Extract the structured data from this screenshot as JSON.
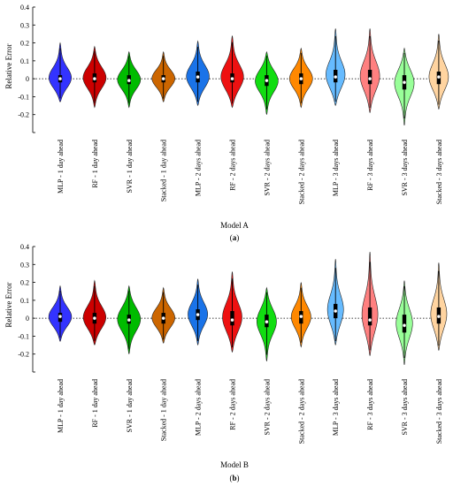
{
  "chart_data": [
    {
      "type": "violin",
      "panel_label": "(a)",
      "panel_letter": "a",
      "xlabel": "Model A",
      "ylabel": "Relative Error",
      "ylim": [
        -0.3,
        0.4
      ],
      "yticks": [
        -0.3,
        -0.2,
        -0.1,
        0,
        0.1,
        0.2,
        0.3,
        0.4
      ],
      "yticklabels": [
        "",
        "-0.2",
        "-0.1",
        "0",
        "0.1",
        "0.2",
        "0.3",
        "0.4"
      ],
      "reference_line_y": 0,
      "categories": [
        "MLP - 1 day ahead",
        "RF - 1 day ahead",
        "SVR - 1 day ahead",
        "Stacked - 1 day ahead",
        "MLP - 2 days ahead",
        "RF - 2 days ahead",
        "SVR - 2 days ahead",
        "Stacked - 2 days ahead",
        "MLP - 3 days ahead",
        "RF - 3 days ahead",
        "SVR - 3 days ahead",
        "Stacked - 3 days ahead"
      ],
      "colors": [
        "#3333ff",
        "#cc0000",
        "#00bb00",
        "#cc6600",
        "#1a73e8",
        "#ee1111",
        "#11dd11",
        "#ff8800",
        "#66bbff",
        "#ff8080",
        "#99ff99",
        "#ffd4a0"
      ],
      "series": [
        {
          "min": -0.13,
          "max": 0.2,
          "median": 0.0,
          "q1": -0.02,
          "q3": 0.02,
          "width": 0.07
        },
        {
          "min": -0.16,
          "max": 0.18,
          "median": 0.0,
          "q1": -0.02,
          "q3": 0.03,
          "width": 0.07
        },
        {
          "min": -0.16,
          "max": 0.15,
          "median": -0.01,
          "q1": -0.03,
          "q3": 0.02,
          "width": 0.07
        },
        {
          "min": -0.13,
          "max": 0.15,
          "median": 0.0,
          "q1": -0.02,
          "q3": 0.02,
          "width": 0.07
        },
        {
          "min": -0.15,
          "max": 0.21,
          "median": 0.01,
          "q1": -0.02,
          "q3": 0.04,
          "width": 0.07
        },
        {
          "min": -0.16,
          "max": 0.24,
          "median": 0.0,
          "q1": -0.02,
          "q3": 0.03,
          "width": 0.07
        },
        {
          "min": -0.2,
          "max": 0.15,
          "median": -0.01,
          "q1": -0.04,
          "q3": 0.02,
          "width": 0.07
        },
        {
          "min": -0.16,
          "max": 0.17,
          "median": 0.0,
          "q1": -0.03,
          "q3": 0.03,
          "width": 0.07
        },
        {
          "min": -0.15,
          "max": 0.28,
          "median": 0.01,
          "q1": -0.02,
          "q3": 0.05,
          "width": 0.06
        },
        {
          "min": -0.19,
          "max": 0.28,
          "median": 0.0,
          "q1": -0.03,
          "q3": 0.05,
          "width": 0.06
        },
        {
          "min": -0.26,
          "max": 0.17,
          "median": -0.02,
          "q1": -0.06,
          "q3": 0.02,
          "width": 0.06
        },
        {
          "min": -0.17,
          "max": 0.25,
          "median": 0.01,
          "q1": -0.03,
          "q3": 0.04,
          "width": 0.06
        }
      ]
    },
    {
      "type": "violin",
      "panel_label": "(b)",
      "panel_letter": "b",
      "xlabel": "Model B",
      "ylabel": "Relative Error",
      "ylim": [
        -0.3,
        0.4
      ],
      "yticks": [
        -0.3,
        -0.2,
        -0.1,
        0,
        0.1,
        0.2,
        0.3,
        0.4
      ],
      "yticklabels": [
        "",
        "-0.2",
        "-0.1",
        "0",
        "0.1",
        "0.2",
        "0.3",
        "0.4"
      ],
      "reference_line_y": 0,
      "categories": [
        "MLP - 1 day ahead",
        "RF - 1 day ahead",
        "SVR - 1 day ahead",
        "Stacked - 1 day ahead",
        "MLP - 2 days ahead",
        "RF - 2 days ahead",
        "SVR - 2 days ahead",
        "Stacked - 2 days ahead",
        "MLP - 3 days ahead",
        "RF - 3 days ahead",
        "SVR - 3 days ahead",
        "Stacked - 3 days ahead"
      ],
      "colors": [
        "#3333ff",
        "#cc0000",
        "#00bb00",
        "#cc6600",
        "#1a73e8",
        "#ee1111",
        "#11dd11",
        "#ff8800",
        "#66bbff",
        "#ff8080",
        "#99ff99",
        "#ffd4a0"
      ],
      "series": [
        {
          "min": -0.13,
          "max": 0.18,
          "median": 0.01,
          "q1": -0.02,
          "q3": 0.03,
          "width": 0.07
        },
        {
          "min": -0.15,
          "max": 0.21,
          "median": 0.0,
          "q1": -0.03,
          "q3": 0.03,
          "width": 0.07
        },
        {
          "min": -0.2,
          "max": 0.18,
          "median": -0.01,
          "q1": -0.03,
          "q3": 0.02,
          "width": 0.07
        },
        {
          "min": -0.14,
          "max": 0.17,
          "median": 0.0,
          "q1": -0.03,
          "q3": 0.03,
          "width": 0.07
        },
        {
          "min": -0.15,
          "max": 0.22,
          "median": 0.02,
          "q1": -0.01,
          "q3": 0.05,
          "width": 0.06
        },
        {
          "min": -0.19,
          "max": 0.26,
          "median": -0.01,
          "q1": -0.04,
          "q3": 0.04,
          "width": 0.06
        },
        {
          "min": -0.24,
          "max": 0.17,
          "median": -0.02,
          "q1": -0.05,
          "q3": 0.02,
          "width": 0.06
        },
        {
          "min": -0.16,
          "max": 0.2,
          "median": 0.01,
          "q1": -0.03,
          "q3": 0.04,
          "width": 0.06
        },
        {
          "min": -0.15,
          "max": 0.33,
          "median": 0.04,
          "q1": 0.0,
          "q3": 0.08,
          "width": 0.05
        },
        {
          "min": -0.21,
          "max": 0.37,
          "median": -0.01,
          "q1": -0.04,
          "q3": 0.06,
          "width": 0.05
        },
        {
          "min": -0.26,
          "max": 0.21,
          "median": -0.04,
          "q1": -0.08,
          "q3": 0.02,
          "width": 0.05
        },
        {
          "min": -0.18,
          "max": 0.31,
          "median": 0.01,
          "q1": -0.03,
          "q3": 0.06,
          "width": 0.05
        }
      ]
    }
  ]
}
